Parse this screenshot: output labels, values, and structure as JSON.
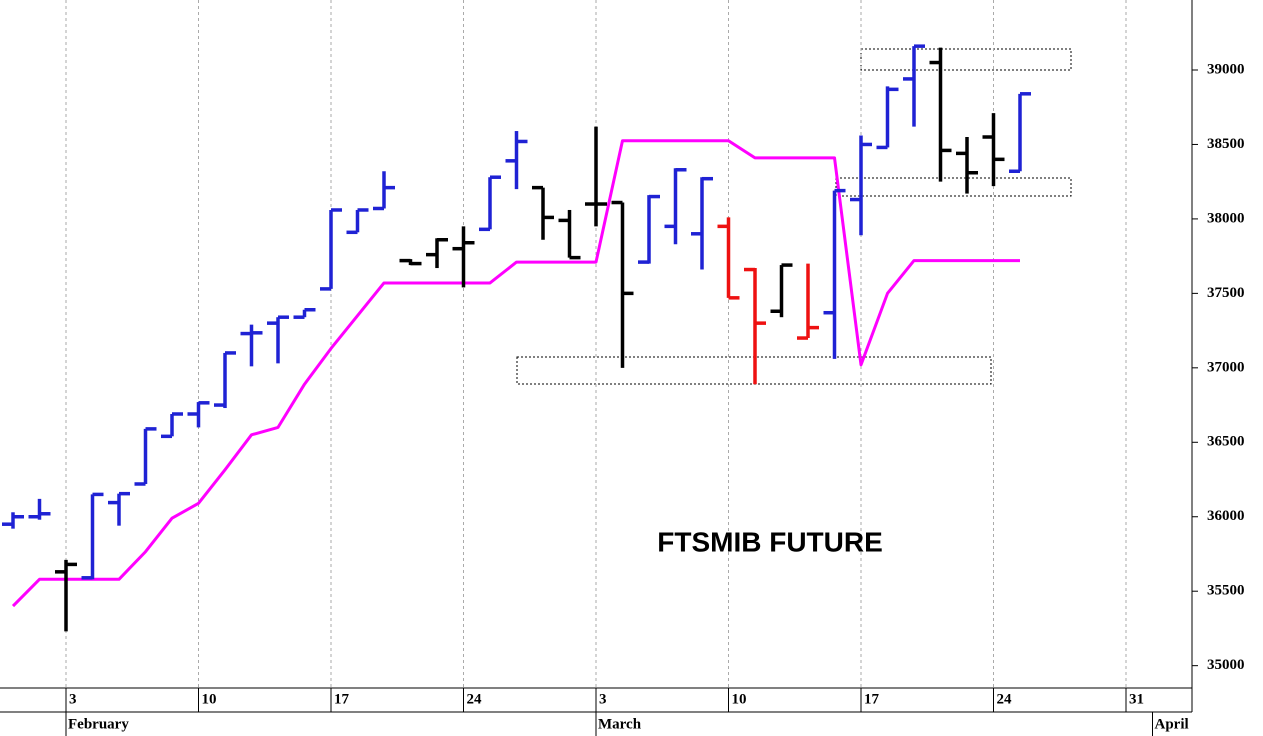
{
  "chart_data": {
    "type": "ohlc",
    "annotation": "FTSMIB FUTURE",
    "categories": [
      null,
      null,
      "3",
      null,
      null,
      null,
      null,
      "10",
      null,
      null,
      null,
      null,
      "17",
      null,
      null,
      null,
      null,
      "24",
      null,
      null,
      null,
      null,
      "3",
      null,
      null,
      null,
      null,
      "10",
      null,
      null,
      null,
      null,
      "17",
      null,
      null,
      null,
      null,
      "24",
      null,
      null,
      null,
      null,
      "31",
      null
    ],
    "month_labels": [
      null,
      null,
      "February",
      null,
      null,
      null,
      null,
      null,
      null,
      null,
      null,
      null,
      null,
      null,
      null,
      null,
      null,
      null,
      null,
      null,
      null,
      null,
      "March",
      null,
      null,
      null,
      null,
      null,
      null,
      null,
      null,
      null,
      null,
      null,
      null,
      null,
      null,
      null,
      null,
      null,
      null,
      null,
      null,
      "April"
    ],
    "open": [
      35950,
      36000,
      35630,
      35590,
      36095,
      36220,
      36540,
      36690,
      36750,
      37230,
      37300,
      37340,
      37530,
      37910,
      38070,
      37720,
      37760,
      37800,
      37930,
      38390,
      38210,
      37990,
      38100,
      38110,
      37710,
      37950,
      37900,
      37950,
      37660,
      37380,
      37200,
      37370,
      38130,
      38480,
      38940,
      39050,
      38440,
      38550,
      38320,
      null,
      null,
      null,
      null,
      null
    ],
    "high": [
      36030,
      36120,
      35710,
      36150,
      36155,
      36590,
      36690,
      36770,
      37100,
      37290,
      37340,
      37390,
      38060,
      38060,
      38320,
      37730,
      37870,
      37950,
      38280,
      38590,
      38210,
      38060,
      38620,
      38110,
      38160,
      38340,
      38280,
      38010,
      37670,
      37690,
      37700,
      38190,
      38560,
      38890,
      39160,
      39150,
      38550,
      38710,
      38840,
      null,
      null,
      null,
      null,
      null
    ],
    "low": [
      35920,
      35980,
      35230,
      35580,
      35940,
      36220,
      36540,
      36600,
      36730,
      37010,
      37030,
      37340,
      37530,
      37910,
      38070,
      37690,
      37670,
      37540,
      37930,
      38200,
      37860,
      37740,
      37950,
      37000,
      37700,
      37830,
      37660,
      37470,
      36890,
      37340,
      37200,
      37060,
      37890,
      38480,
      38620,
      38250,
      38170,
      38220,
      38320,
      null,
      null,
      null,
      null,
      null
    ],
    "close": [
      36000,
      36020,
      35680,
      36150,
      36155,
      36590,
      36690,
      36765,
      37100,
      37235,
      37340,
      37390,
      38060,
      38060,
      38210,
      37700,
      37860,
      37840,
      38280,
      38520,
      38010,
      37740,
      38100,
      37500,
      38150,
      38330,
      38270,
      37470,
      37300,
      37690,
      37270,
      38190,
      38500,
      38870,
      39160,
      38460,
      38310,
      38400,
      38840,
      null,
      null,
      null,
      null,
      null
    ],
    "bar_colors": [
      "#1f22d4",
      "#1f22d4",
      "#000000",
      "#1f22d4",
      "#1f22d4",
      "#1f22d4",
      "#1f22d4",
      "#1f22d4",
      "#1f22d4",
      "#1f22d4",
      "#1f22d4",
      "#1f22d4",
      "#1f22d4",
      "#1f22d4",
      "#1f22d4",
      "#000000",
      "#000000",
      "#000000",
      "#1f22d4",
      "#1f22d4",
      "#000000",
      "#000000",
      "#000000",
      "#000000",
      "#1f22d4",
      "#1f22d4",
      "#1f22d4",
      "#ee1111",
      "#ee1111",
      "#000000",
      "#ee1111",
      "#1f22d4",
      "#1f22d4",
      "#1f22d4",
      "#1f22d4",
      "#000000",
      "#000000",
      "#000000",
      "#1f22d4",
      null,
      null,
      null,
      null,
      null
    ],
    "line": {
      "color": "#ff00ff",
      "values": [
        35400,
        35580,
        35580,
        35580,
        35580,
        35765,
        35990,
        36090,
        36315,
        36550,
        36600,
        36890,
        37130,
        37350,
        37570,
        37570,
        37570,
        37570,
        37570,
        37710,
        37710,
        37710,
        37710,
        38525,
        38525,
        38525,
        38525,
        38525,
        38410,
        38410,
        38410,
        38410,
        37020,
        37500,
        37720,
        37720,
        37720,
        37720,
        37720,
        null,
        null,
        null,
        null,
        null
      ]
    },
    "ylim": [
      34850,
      39470
    ],
    "yticks": [
      35000,
      35500,
      36000,
      36500,
      37000,
      37500,
      38000,
      38500,
      39000
    ],
    "grid": true
  }
}
